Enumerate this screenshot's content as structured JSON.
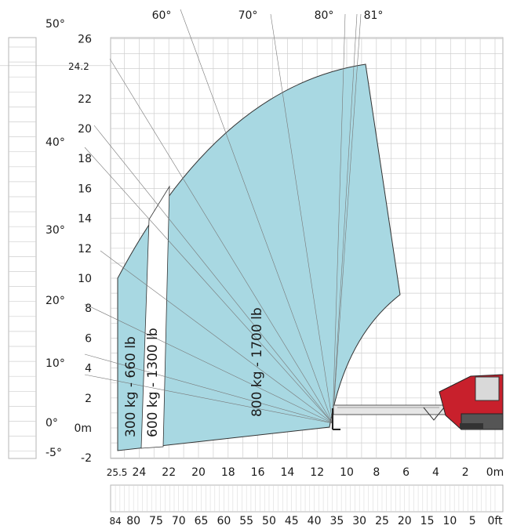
{
  "angle_labels_top": [
    "60°",
    "70°",
    "80°",
    "81°"
  ],
  "angle_labels_left": [
    "50°",
    "40°",
    "30°",
    "20°",
    "10°",
    "0°",
    "-5°"
  ],
  "y_axis": {
    "ticks": [
      "26",
      "22",
      "20",
      "18",
      "16",
      "14",
      "12",
      "10",
      "8",
      "6",
      "4",
      "2",
      "0m",
      "-2"
    ],
    "max_height_label": "24.2"
  },
  "x_axis": {
    "ticks": [
      "25.5",
      "24",
      "22",
      "20",
      "18",
      "16",
      "14",
      "12",
      "10",
      "8",
      "6",
      "4",
      "2",
      "0m"
    ]
  },
  "feet_axis": {
    "ticks": [
      "84",
      "80",
      "75",
      "70",
      "65",
      "60",
      "55",
      "50",
      "45",
      "40",
      "35",
      "30",
      "25",
      "20",
      "15",
      "10",
      "5",
      "0ft"
    ]
  },
  "zones": [
    {
      "label": "300 kg - 660 lb"
    },
    {
      "label": "600 kg - 1300 lb"
    },
    {
      "label": "800 kg - 1700 lb"
    }
  ],
  "colors": {
    "zone_fill": "#a8d8e2",
    "grid": "#c8c8c8",
    "machine_red": "#c8202c"
  }
}
